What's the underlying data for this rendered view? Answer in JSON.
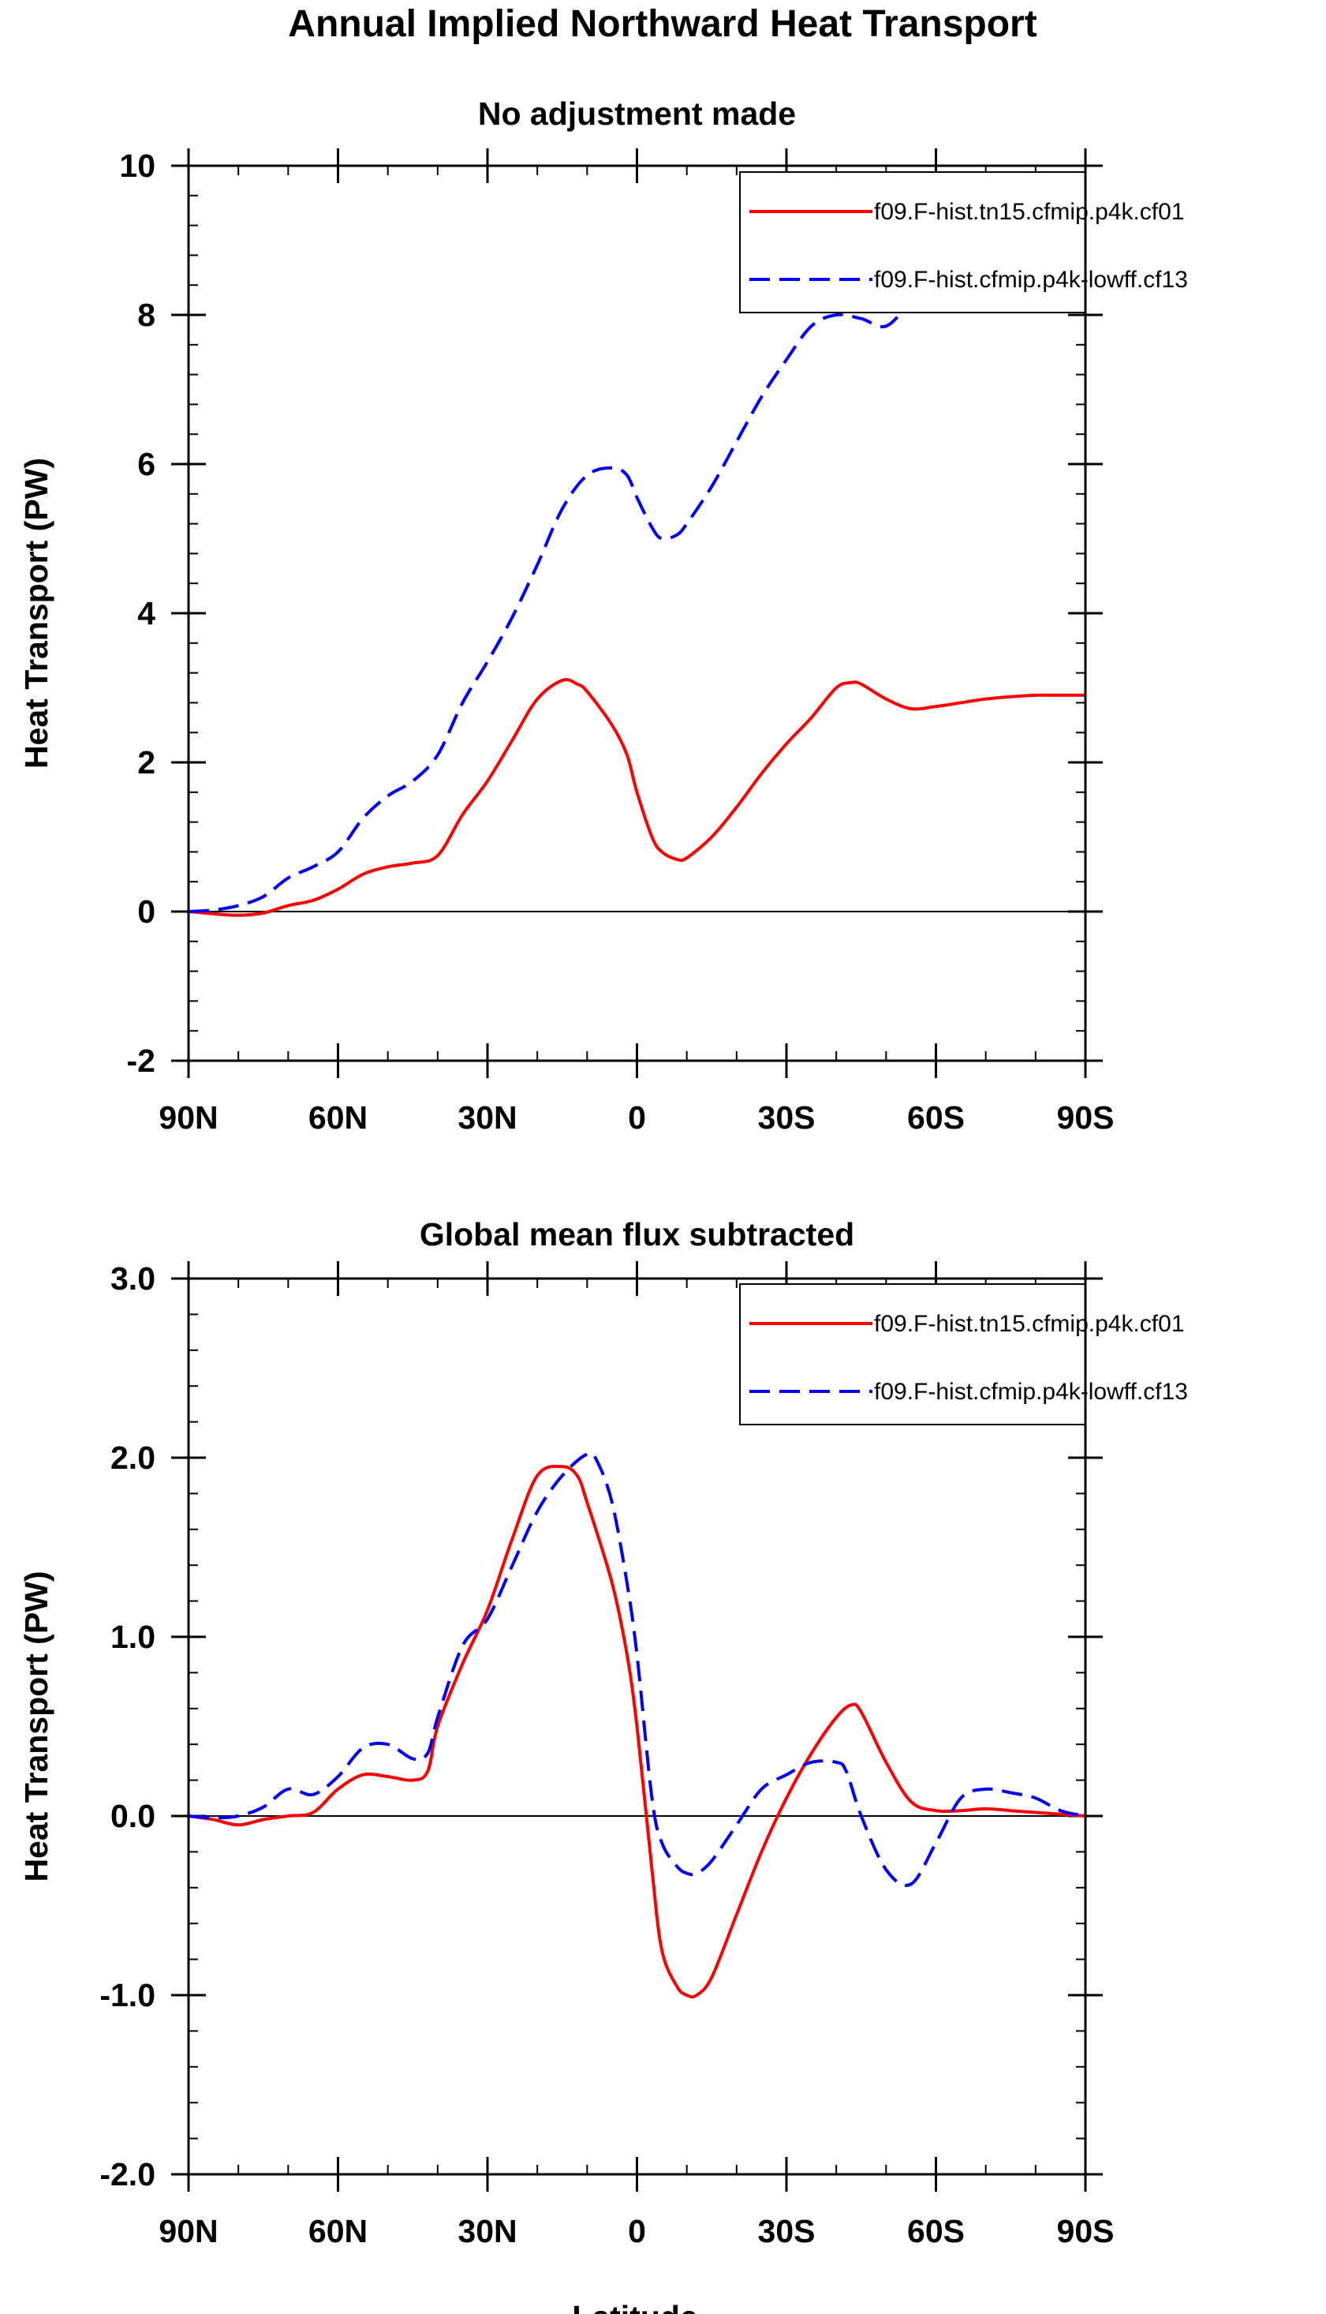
{
  "figure": {
    "title": "Annual Implied Northward Heat Transport",
    "xlabel": "Latitude"
  },
  "colors": {
    "series_1": "#ff0000",
    "series_2": "#0000ff",
    "zero_line": "#000000"
  },
  "chart_data": [
    {
      "type": "line",
      "title": "No adjustment made",
      "xlabel": "",
      "ylabel": "Heat Transport (PW)",
      "xlim": [
        90,
        -90
      ],
      "ylim": [
        -2,
        10
      ],
      "xticks": [
        90,
        60,
        30,
        0,
        -30,
        -60,
        -90
      ],
      "xtick_labels": [
        "90N",
        "60N",
        "30N",
        "0",
        "30S",
        "60S",
        "90S"
      ],
      "yticks": [
        -2,
        0,
        2,
        4,
        6,
        8,
        10
      ],
      "ytick_labels": [
        "-2",
        "0",
        "2",
        "4",
        "6",
        "8",
        "10"
      ],
      "y_minor_step": 0.4,
      "x_minor_step": 10,
      "zero_line": true,
      "grid": false,
      "legend_position": "top-right",
      "series": [
        {
          "name": "f09.F-hist.tn15.cfmip.p4k.cf01",
          "style": "solid",
          "x": [
            90,
            85,
            80,
            75,
            70,
            65,
            60,
            55,
            50,
            45,
            40,
            35,
            30,
            25,
            20,
            15,
            12,
            10,
            5,
            2,
            0,
            -3,
            -5,
            -8,
            -10,
            -15,
            -20,
            -25,
            -30,
            -35,
            -40,
            -43,
            -45,
            -50,
            -55,
            -60,
            -65,
            -70,
            -75,
            -80,
            -85,
            -90
          ],
          "y": [
            0.0,
            -0.03,
            -0.05,
            -0.02,
            0.08,
            0.15,
            0.3,
            0.5,
            0.6,
            0.65,
            0.75,
            1.3,
            1.75,
            2.3,
            2.85,
            3.1,
            3.05,
            2.95,
            2.5,
            2.1,
            1.6,
            1.0,
            0.8,
            0.7,
            0.72,
            1.0,
            1.4,
            1.85,
            2.25,
            2.6,
            3.0,
            3.07,
            3.05,
            2.85,
            2.72,
            2.75,
            2.8,
            2.85,
            2.88,
            2.9,
            2.9,
            2.9
          ]
        },
        {
          "name": "f09.F-hist.cfmip.p4k-lowff.cf13",
          "style": "dashed",
          "x": [
            90,
            85,
            80,
            75,
            70,
            65,
            60,
            55,
            50,
            45,
            40,
            35,
            30,
            25,
            20,
            15,
            10,
            5,
            2,
            0,
            -3,
            -5,
            -8,
            -10,
            -15,
            -20,
            -25,
            -30,
            -35,
            -40,
            -45,
            -50,
            -55,
            -60,
            -65,
            -70,
            -75,
            -80,
            -85,
            -90
          ],
          "y": [
            0.0,
            0.02,
            0.08,
            0.2,
            0.45,
            0.6,
            0.8,
            1.25,
            1.55,
            1.75,
            2.1,
            2.8,
            3.35,
            3.95,
            4.65,
            5.4,
            5.85,
            5.95,
            5.85,
            5.55,
            5.15,
            5.0,
            5.05,
            5.2,
            5.7,
            6.3,
            6.9,
            7.4,
            7.85,
            8.0,
            7.95,
            7.85,
            8.2,
            8.65,
            9.0,
            9.1,
            9.12,
            9.12,
            9.12,
            9.12
          ]
        }
      ]
    },
    {
      "type": "line",
      "title": "Global mean flux subtracted",
      "xlabel": "Latitude",
      "ylabel": "Heat Transport (PW)",
      "xlim": [
        90,
        -90
      ],
      "ylim": [
        -2,
        3
      ],
      "xticks": [
        90,
        60,
        30,
        0,
        -30,
        -60,
        -90
      ],
      "xtick_labels": [
        "90N",
        "60N",
        "30N",
        "0",
        "30S",
        "60S",
        "90S"
      ],
      "yticks": [
        -2,
        -1,
        0,
        1,
        2,
        3
      ],
      "ytick_labels": [
        "-2.0",
        "-1.0",
        "0.0",
        "1.0",
        "2.0",
        "3.0"
      ],
      "y_minor_step": 0.2,
      "x_minor_step": 10,
      "zero_line": true,
      "grid": false,
      "legend_position": "top-right",
      "series": [
        {
          "name": "f09.F-hist.tn15.cfmip.p4k.cf01",
          "style": "solid",
          "x": [
            90,
            85,
            80,
            75,
            70,
            65,
            60,
            55,
            50,
            45,
            42,
            40,
            35,
            30,
            25,
            20,
            15,
            12,
            10,
            5,
            2,
            0,
            -3,
            -5,
            -8,
            -10,
            -12,
            -15,
            -20,
            -25,
            -30,
            -35,
            -40,
            -43,
            -45,
            -50,
            -55,
            -60,
            -65,
            -70,
            -75,
            -80,
            -85,
            -90
          ],
          "y": [
            0.0,
            -0.02,
            -0.05,
            -0.02,
            0.0,
            0.02,
            0.15,
            0.23,
            0.22,
            0.2,
            0.25,
            0.5,
            0.85,
            1.15,
            1.55,
            1.9,
            1.95,
            1.9,
            1.75,
            1.3,
            0.9,
            0.5,
            -0.3,
            -0.75,
            -0.95,
            -1.0,
            -1.0,
            -0.9,
            -0.55,
            -0.2,
            0.1,
            0.35,
            0.55,
            0.62,
            0.58,
            0.3,
            0.08,
            0.03,
            0.03,
            0.04,
            0.03,
            0.02,
            0.01,
            0.0
          ]
        },
        {
          "name": "f09.F-hist.cfmip.p4k-lowff.cf13",
          "style": "dashed",
          "x": [
            90,
            85,
            80,
            75,
            70,
            65,
            60,
            55,
            50,
            45,
            42,
            40,
            35,
            30,
            25,
            20,
            15,
            10,
            8,
            5,
            2,
            0,
            -3,
            -5,
            -8,
            -10,
            -12,
            -15,
            -20,
            -25,
            -30,
            -35,
            -40,
            -42,
            -45,
            -50,
            -55,
            -60,
            -65,
            -70,
            -75,
            -80,
            -85,
            -90
          ],
          "y": [
            0.0,
            -0.01,
            0.0,
            0.05,
            0.15,
            0.12,
            0.22,
            0.38,
            0.4,
            0.32,
            0.35,
            0.55,
            0.95,
            1.1,
            1.4,
            1.7,
            1.9,
            2.02,
            1.98,
            1.75,
            1.3,
            0.9,
            0.1,
            -0.15,
            -0.28,
            -0.32,
            -0.32,
            -0.25,
            -0.05,
            0.15,
            0.23,
            0.3,
            0.3,
            0.25,
            0.0,
            -0.3,
            -0.38,
            -0.15,
            0.1,
            0.15,
            0.13,
            0.1,
            0.03,
            0.0
          ]
        }
      ]
    }
  ]
}
